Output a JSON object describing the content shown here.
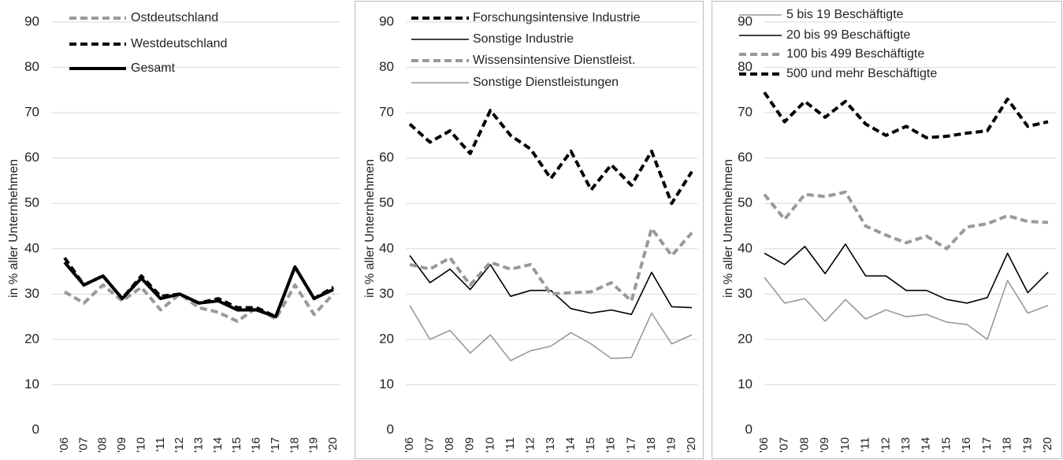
{
  "chart_data": [
    {
      "type": "line",
      "ylabel": "in % aller Unternhehmen",
      "categories": [
        "'06",
        "'07",
        "'08",
        "'09",
        "'10",
        "'11",
        "'12",
        "'13",
        "'14",
        "'15",
        "'16",
        "'17",
        "'18",
        "'19",
        "'20"
      ],
      "ylim": [
        0,
        90
      ],
      "yticks": [
        0,
        10,
        20,
        30,
        40,
        50,
        60,
        70,
        80,
        90
      ],
      "grid": true,
      "legend": "upper left",
      "border": false,
      "series": [
        {
          "name": "Ostdeutschland",
          "color": "#999999",
          "line_style": "dashed",
          "line_weight": "heavy",
          "values": [
            30.5,
            28,
            32,
            28.5,
            31.5,
            26.5,
            30,
            27,
            26,
            24,
            27,
            24.5,
            32,
            25.5,
            30
          ]
        },
        {
          "name": "Westdeutschland",
          "color": "#000000",
          "line_style": "dashed",
          "line_weight": "heavy",
          "values": [
            38,
            32,
            34,
            29,
            34,
            29.5,
            30,
            28,
            29,
            27,
            27,
            25,
            36,
            29,
            31.5
          ]
        },
        {
          "name": "Gesamt",
          "color": "#000000",
          "line_style": "solid",
          "line_weight": "heavy",
          "values": [
            37,
            32,
            34,
            29,
            33.5,
            29,
            30,
            28,
            28.5,
            26.5,
            26.5,
            25,
            36,
            29,
            31
          ]
        }
      ]
    },
    {
      "type": "line",
      "ylabel": "in % aller Unternhehmen",
      "categories": [
        "'06",
        "'07",
        "'08",
        "'09",
        "'10",
        "'11",
        "'12",
        "'13",
        "'14",
        "'15",
        "'16",
        "'17",
        "'18",
        "'19",
        "'20"
      ],
      "ylim": [
        0,
        90
      ],
      "yticks": [
        0,
        10,
        20,
        30,
        40,
        50,
        60,
        70,
        80,
        90
      ],
      "grid": true,
      "legend": "upper left",
      "border": true,
      "series": [
        {
          "name": "Forschungsintensive Industrie",
          "color": "#000000",
          "line_style": "dashed",
          "line_weight": "heavy",
          "values": [
            67.5,
            63.5,
            66,
            61,
            70.5,
            65,
            62,
            55.5,
            61.5,
            53,
            58.5,
            54,
            61.5,
            50,
            57
          ]
        },
        {
          "name": "Sonstige Industrie",
          "color": "#000000",
          "line_style": "solid",
          "line_weight": "light",
          "values": [
            38.5,
            32.5,
            35.5,
            31,
            36.5,
            29.5,
            30.8,
            30.8,
            26.8,
            25.8,
            26.5,
            25.5,
            34.8,
            27.2,
            27
          ]
        },
        {
          "name": "Wissensintensive Dienstleist.",
          "color": "#999999",
          "line_style": "dashed",
          "line_weight": "heavy",
          "values": [
            36.5,
            35.5,
            38,
            32,
            37,
            35.5,
            36.5,
            30,
            30.3,
            30.5,
            32.5,
            28.5,
            44.5,
            38.5,
            43.5
          ]
        },
        {
          "name": "Sonstige Dienstleistungen",
          "color": "#999999",
          "line_style": "solid",
          "line_weight": "light",
          "values": [
            27.5,
            20,
            22,
            17,
            21,
            15.3,
            17.5,
            18.5,
            21.5,
            19,
            15.8,
            16,
            25.8,
            19,
            21
          ]
        }
      ]
    },
    {
      "type": "line",
      "ylabel": "in % aller Unternhehmen",
      "categories": [
        "'06",
        "'07",
        "'08",
        "'09",
        "'10",
        "'11",
        "'12",
        "'13",
        "'14",
        "'15",
        "'16",
        "'17",
        "'18",
        "'19",
        "'20"
      ],
      "ylim": [
        0,
        90
      ],
      "yticks": [
        0,
        10,
        20,
        30,
        40,
        50,
        60,
        70,
        80,
        90
      ],
      "grid": true,
      "legend": "upper left",
      "border": true,
      "series": [
        {
          "name": "5 bis 19 Beschäftigte",
          "color": "#999999",
          "line_style": "solid",
          "line_weight": "light",
          "values": [
            33.7,
            28,
            29,
            24,
            28.8,
            24.5,
            26.5,
            25,
            25.5,
            23.8,
            23.3,
            20,
            33,
            25.8,
            27.5
          ]
        },
        {
          "name": "20 bis 99 Beschäftigte",
          "color": "#000000",
          "line_style": "solid",
          "line_weight": "light",
          "values": [
            39,
            36.5,
            40.5,
            34.5,
            41,
            34,
            34,
            30.8,
            30.8,
            28.8,
            28,
            29.2,
            39,
            30.3,
            34.8
          ]
        },
        {
          "name": "100 bis 499 Beschäftigte",
          "color": "#999999",
          "line_style": "dashed",
          "line_weight": "heavy",
          "values": [
            52,
            46.5,
            52,
            51.5,
            52.5,
            45,
            43,
            41.3,
            42.8,
            40,
            44.8,
            45.5,
            47.3,
            46,
            45.8
          ]
        },
        {
          "name": "500 und mehr Beschäftigte",
          "color": "#000000",
          "line_style": "dashed",
          "line_weight": "heavy",
          "values": [
            74.5,
            68,
            72.5,
            69,
            72.5,
            67.5,
            65,
            67,
            64.5,
            64.8,
            65.5,
            66,
            73,
            67,
            68
          ]
        }
      ]
    }
  ]
}
